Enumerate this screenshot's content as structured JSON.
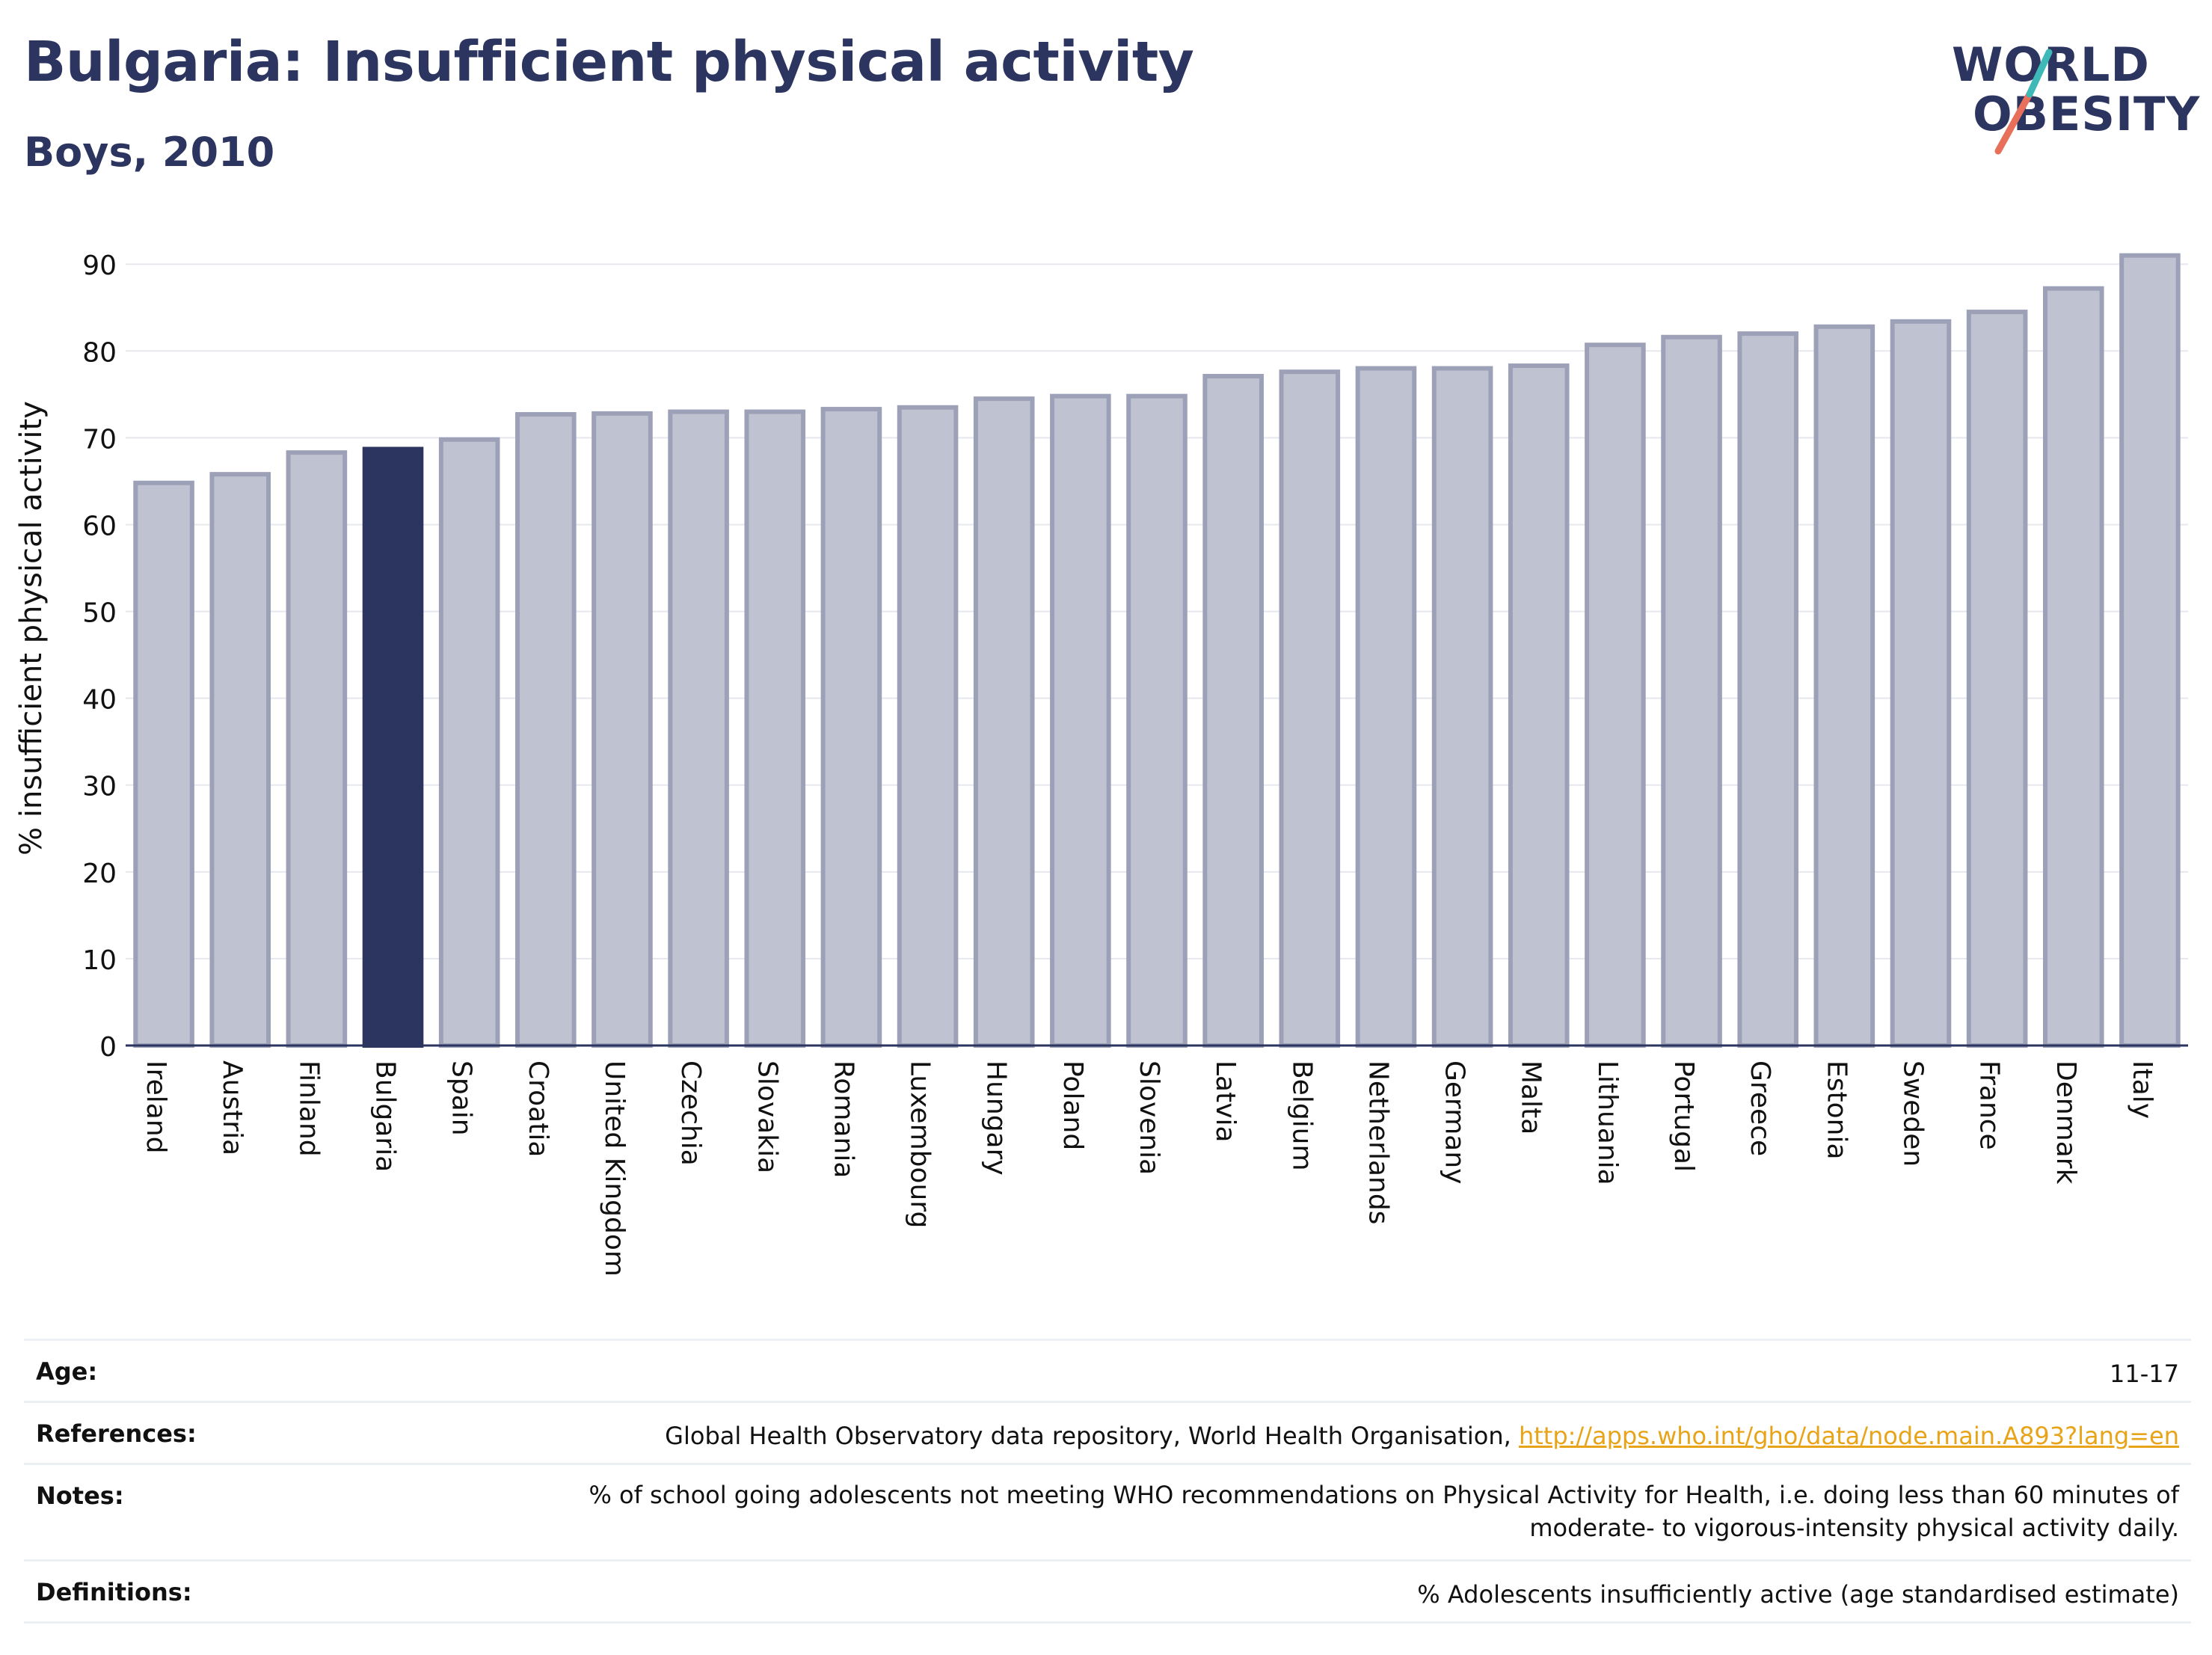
{
  "header": {
    "title": "Bulgaria: Insufficient physical activity",
    "subtitle": "Boys, 2010"
  },
  "logo": {
    "line1": "WORLD",
    "line2": "OBESITY"
  },
  "colors": {
    "accent": "#2b3560",
    "bar_default": "#bfc2d0",
    "bar_border": "#9da1b8",
    "highlight": "#2b3560",
    "link": "#e8a418",
    "logo_teal": "#3fb8b8",
    "logo_coral": "#e8705a"
  },
  "chart_data": {
    "type": "bar",
    "title": "Bulgaria: Insufficient physical activity",
    "subtitle": "Boys, 2010",
    "ylabel": "% insufficient physical activity",
    "xlabel": "",
    "ylim": [
      0,
      92
    ],
    "yticks": [
      0,
      10,
      20,
      30,
      40,
      50,
      60,
      70,
      80,
      90
    ],
    "grid": true,
    "highlight": "Bulgaria",
    "categories": [
      "Ireland",
      "Austria",
      "Finland",
      "Bulgaria",
      "Spain",
      "Croatia",
      "United Kingdom",
      "Czechia",
      "Slovakia",
      "Romania",
      "Luxembourg",
      "Hungary",
      "Poland",
      "Slovenia",
      "Latvia",
      "Belgium",
      "Netherlands",
      "Germany",
      "Malta",
      "Lithuania",
      "Portugal",
      "Greece",
      "Estonia",
      "Sweden",
      "France",
      "Denmark",
      "Italy"
    ],
    "values": [
      64.8,
      65.8,
      68.3,
      68.7,
      69.8,
      72.7,
      72.8,
      73.0,
      73.0,
      73.3,
      73.5,
      74.5,
      74.8,
      74.8,
      77.1,
      77.6,
      78.0,
      78.0,
      78.3,
      80.7,
      81.6,
      82.0,
      82.8,
      83.4,
      84.5,
      87.2,
      91.0
    ]
  },
  "meta": {
    "age_label": "Age:",
    "age_value": "11-17",
    "references_label": "References:",
    "references_text": "Global Health Observatory data repository, World Health Organisation, ",
    "references_link": "http://apps.who.int/gho/data/node.main.A893?lang=en",
    "notes_label": "Notes:",
    "notes_text": "% of school going adolescents not meeting WHO recommendations on Physical Activity for Health, i.e. doing less than 60 minutes of moderate- to vigorous-intensity physical activity daily.",
    "definitions_label": "Definitions:",
    "definitions_text": "% Adolescents insufficiently active (age standardised estimate)"
  }
}
